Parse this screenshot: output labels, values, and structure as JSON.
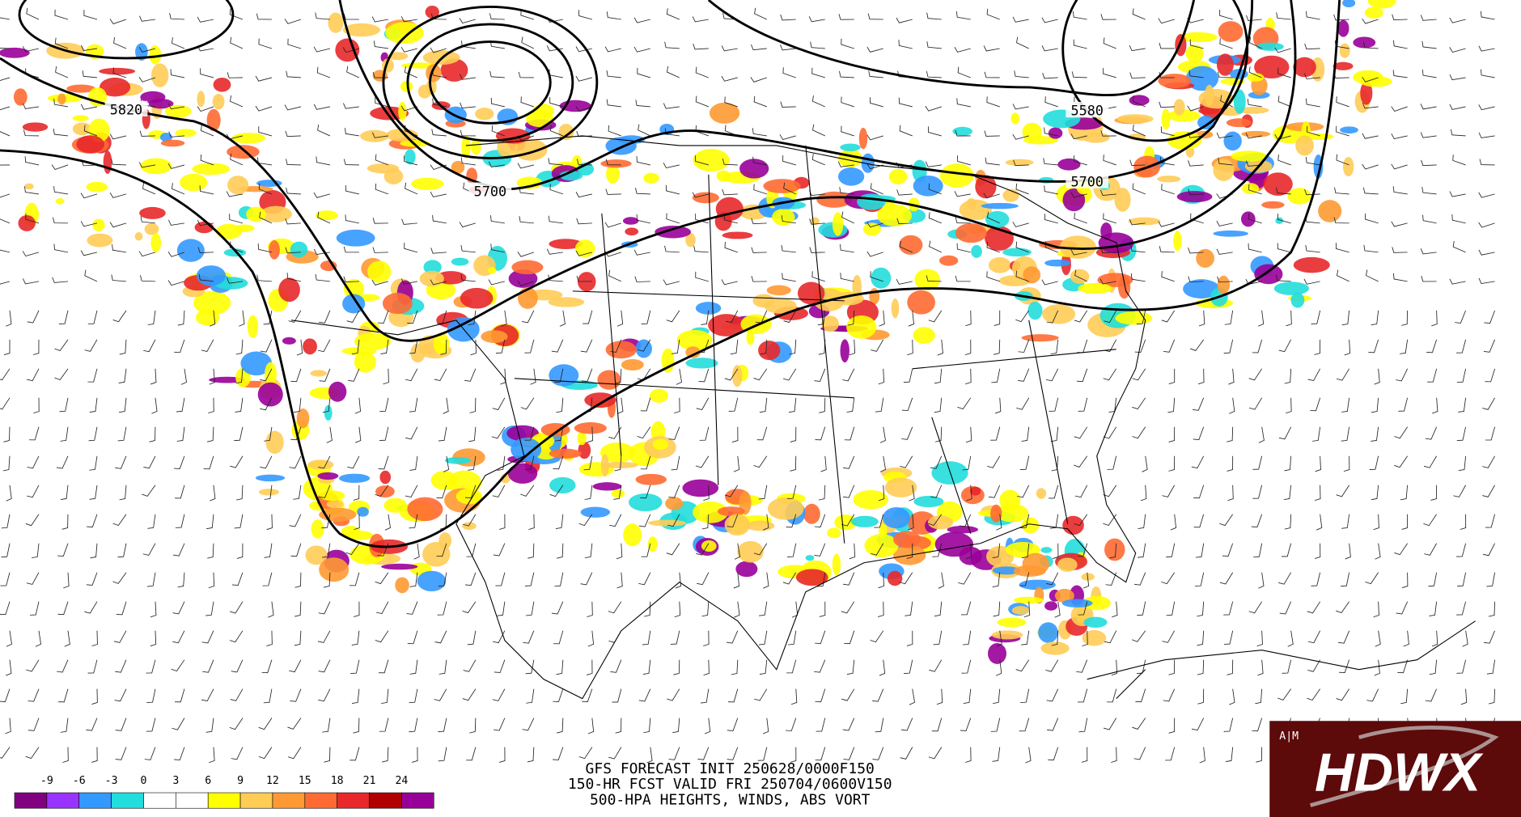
{
  "product": {
    "line1": "GFS FORECAST INIT 250628/0000F150",
    "line2": "150-HR FCST VALID FRI 250704/0600V150",
    "line3": "500-HPA HEIGHTS, WINDS, ABS VORT"
  },
  "contour_labels": [
    "5820",
    "5700",
    "5700",
    "5580"
  ],
  "colorbar": {
    "ticks": [
      -9,
      -6,
      -3,
      0,
      3,
      6,
      9,
      12,
      15,
      18,
      21,
      24
    ],
    "colors": [
      "#800080",
      "#9933ff",
      "#3399ff",
      "#22dddd",
      "#ffffff",
      "#ffffff",
      "#ffff00",
      "#ffcc55",
      "#ff9933",
      "#ff6a33",
      "#e8282a",
      "#b00000",
      "#990099"
    ]
  },
  "logo": "HDWX"
}
